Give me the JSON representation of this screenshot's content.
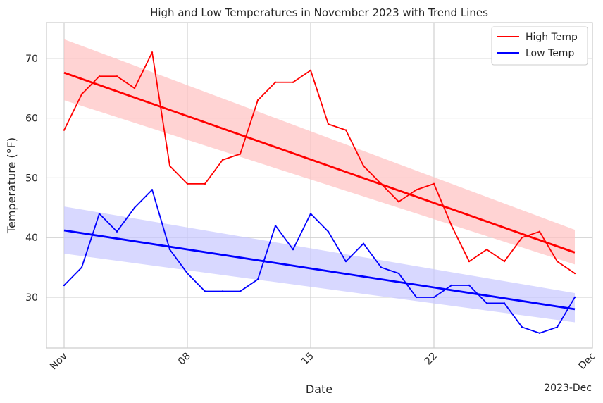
{
  "chart_data": {
    "type": "line",
    "title": "High and Low Temperatures in November 2023 with Trend Lines",
    "xlabel": "Date",
    "ylabel": "Temperature (°F)",
    "x_tick_labels": [
      "Nov",
      "08",
      "15",
      "22",
      "Dec"
    ],
    "x_offset_label": "2023-Dec",
    "xlim": [
      "2023-10-31",
      "2023-12-01"
    ],
    "ylim": [
      21.5,
      76
    ],
    "y_ticks": [
      30,
      40,
      50,
      60,
      70
    ],
    "grid": true,
    "legend_position": "top-right",
    "x": [
      "2023-11-01",
      "2023-11-02",
      "2023-11-03",
      "2023-11-04",
      "2023-11-05",
      "2023-11-06",
      "2023-11-07",
      "2023-11-08",
      "2023-11-09",
      "2023-11-10",
      "2023-11-11",
      "2023-11-12",
      "2023-11-13",
      "2023-11-14",
      "2023-11-15",
      "2023-11-16",
      "2023-11-17",
      "2023-11-18",
      "2023-11-19",
      "2023-11-20",
      "2023-11-21",
      "2023-11-22",
      "2023-11-23",
      "2023-11-24",
      "2023-11-25",
      "2023-11-26",
      "2023-11-27",
      "2023-11-28",
      "2023-11-29",
      "2023-11-30",
      "2023-12-01"
    ],
    "series": [
      {
        "name": "High Temp",
        "color": "#ff0000",
        "values": [
          58,
          64,
          67,
          67,
          65,
          71,
          52,
          49,
          49,
          53,
          54,
          63,
          66,
          66,
          68,
          59,
          58,
          52,
          49,
          46,
          48,
          49,
          42,
          36,
          38,
          36,
          40,
          41,
          36,
          34,
          null
        ],
        "trend": {
          "start": 67.6,
          "end": 37.5,
          "ci_start": [
            63.0,
            73.2
          ],
          "ci_end": [
            35.5,
            41.3
          ],
          "band_color": "#ffc0c0"
        }
      },
      {
        "name": "Low Temp",
        "color": "#0000ff",
        "values": [
          32,
          35,
          44,
          41,
          45,
          48,
          38,
          34,
          31,
          31,
          31,
          33,
          42,
          38,
          44,
          41,
          36,
          39,
          35,
          34,
          30,
          30,
          32,
          32,
          29,
          29,
          25,
          24,
          25,
          30,
          null
        ],
        "trend": {
          "start": 41.2,
          "end": 28.0,
          "ci_start": [
            37.3,
            45.2
          ],
          "ci_end": [
            25.8,
            30.7
          ],
          "band_color": "#c8c8ff"
        }
      }
    ]
  }
}
